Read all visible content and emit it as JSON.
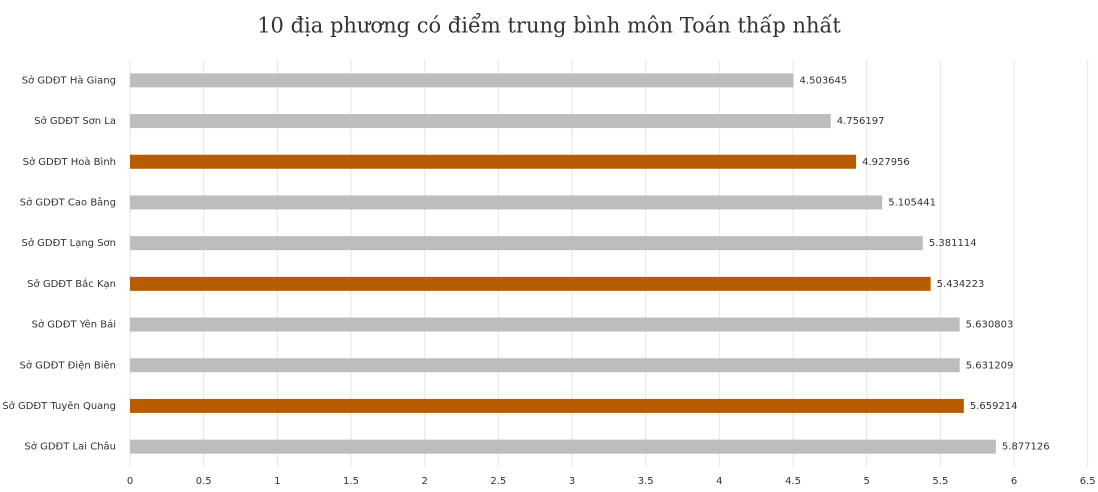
{
  "chart_data": {
    "type": "hbar",
    "title": "10 địa phương có điểm trung bình môn Toán thấp nhất",
    "categories": [
      "Sở GDĐT Hà Giang",
      "Sở GDĐT Sơn La",
      "Sở GDĐT Hoà Bình",
      "Sở GDĐT Cao Bằng",
      "Sở GDĐT Lạng Sơn",
      "Sở GDĐT Bắc Kạn",
      "Sở GDĐT Yên Bái",
      "Sở GDĐT Điện Biên",
      "Sở GDĐT Tuyên Quang",
      "Sở GDĐT Lai Châu"
    ],
    "values": [
      4.503645,
      4.756197,
      4.927956,
      5.105441,
      5.381114,
      5.434223,
      5.630803,
      5.631209,
      5.659214,
      5.877126
    ],
    "colors": [
      "#bdbdbd",
      "#bdbdbd",
      "#b85c00",
      "#bdbdbd",
      "#bdbdbd",
      "#b85c00",
      "#bdbdbd",
      "#bdbdbd",
      "#b85c00",
      "#bdbdbd"
    ],
    "xlim": [
      0,
      6.5
    ],
    "xticks": [
      0,
      0.5,
      1,
      1.5,
      2,
      2.5,
      3,
      3.5,
      4,
      4.5,
      5,
      5.5,
      6,
      6.5
    ],
    "grid": true
  }
}
